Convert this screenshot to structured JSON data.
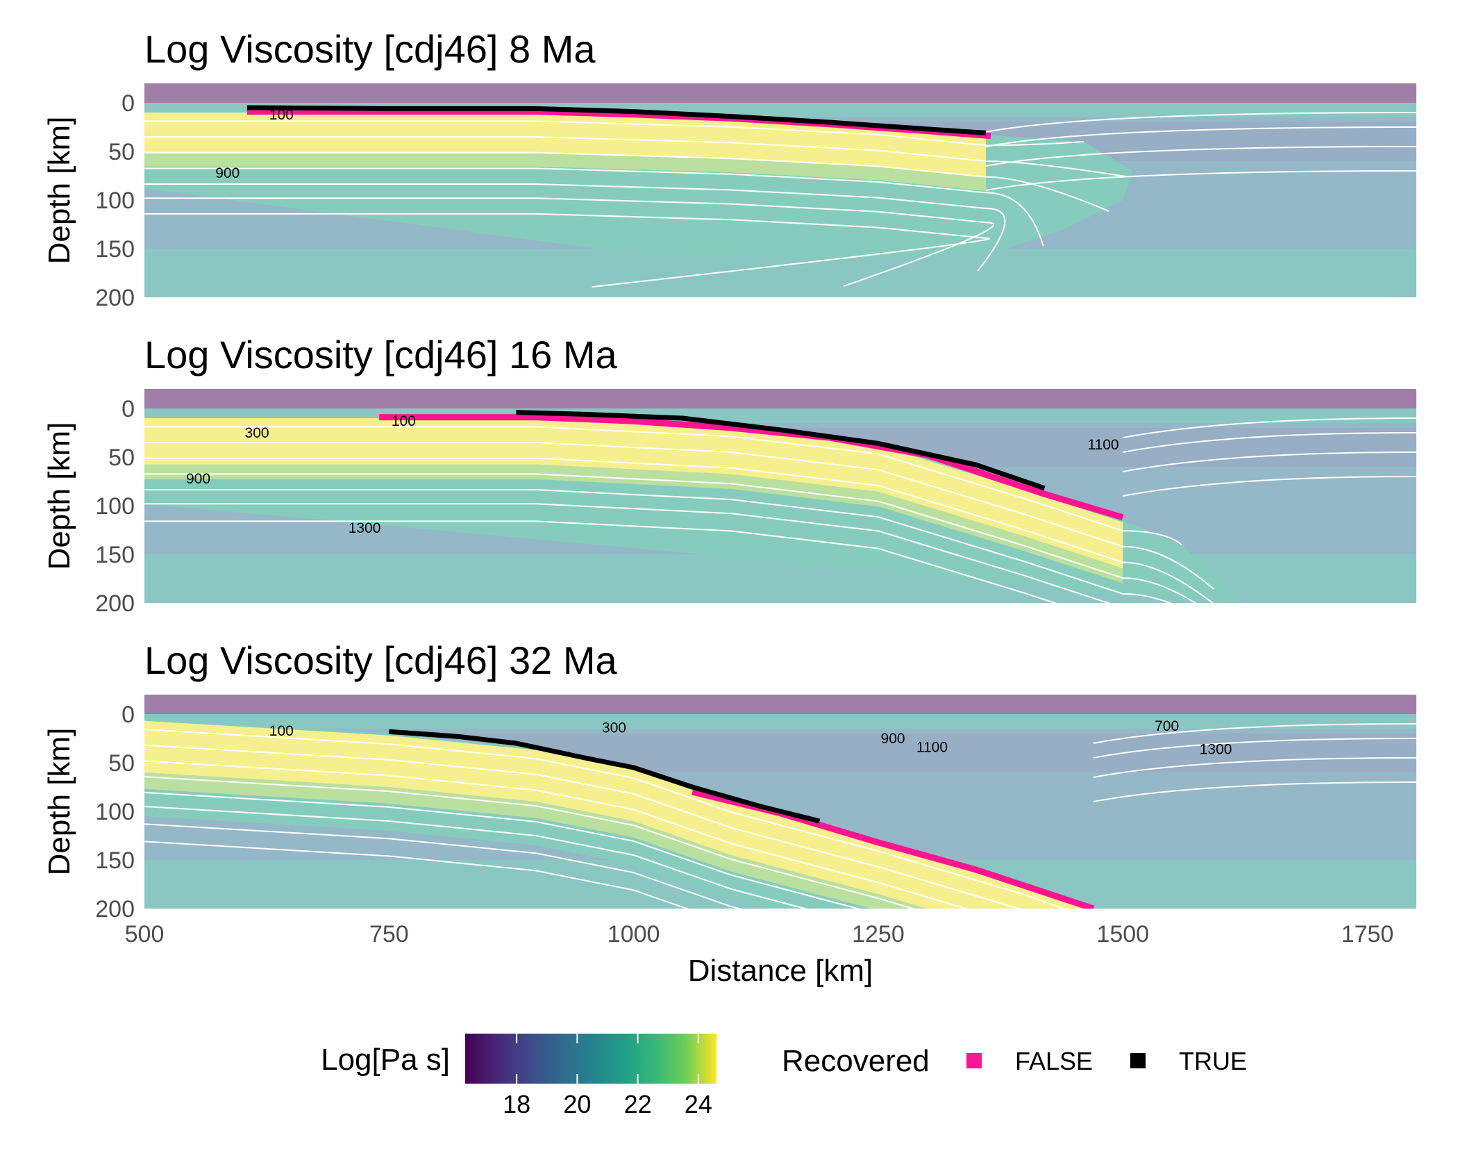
{
  "chart_data": {
    "type": "heatmap",
    "panels": [
      {
        "title": "Log Viscosity [cdj46] 8 Ma",
        "ylabel": "Depth [km]",
        "contour_labels": [
          {
            "text": "100",
            "x": 640,
            "y": 12
          },
          {
            "text": "900",
            "x": 585,
            "y": 72
          }
        ],
        "slab": {
          "surface": [
            [
              600,
              8
            ],
            [
              900,
              8
            ],
            [
              1100,
              14
            ],
            [
              1250,
              22
            ],
            [
              1360,
              33
            ]
          ],
          "thickness": 80,
          "tip": [
            [
              1460,
              40
            ],
            [
              1510,
              70
            ],
            [
              1500,
              100
            ],
            [
              1440,
              130
            ],
            [
              1380,
              150
            ],
            [
              1250,
              160
            ],
            [
              1000,
              155
            ]
          ]
        },
        "false_markers": [
          [
            605,
            9
          ],
          [
            700,
            9
          ],
          [
            800,
            9
          ],
          [
            900,
            9
          ],
          [
            1000,
            12
          ],
          [
            1100,
            16
          ],
          [
            1200,
            22
          ],
          [
            1300,
            29
          ],
          [
            1365,
            34
          ]
        ],
        "true_markers": [
          [
            605,
            5
          ],
          [
            750,
            6
          ],
          [
            900,
            6
          ],
          [
            1000,
            9
          ],
          [
            1100,
            14
          ],
          [
            1200,
            20
          ],
          [
            1300,
            27
          ],
          [
            1360,
            31
          ]
        ],
        "isotherms_depth": [
          12,
          30,
          48,
          66,
          84,
          100,
          118
        ]
      },
      {
        "title": "Log Viscosity [cdj46] 16 Ma",
        "ylabel": "Depth [km]",
        "contour_labels": [
          {
            "text": "100",
            "x": 765,
            "y": 13
          },
          {
            "text": "300",
            "x": 615,
            "y": 25
          },
          {
            "text": "900",
            "x": 555,
            "y": 72
          },
          {
            "text": "1300",
            "x": 725,
            "y": 123
          },
          {
            "text": "1100",
            "x": 1480,
            "y": 37
          }
        ],
        "slab": {
          "surface": [
            [
              740,
              8
            ],
            [
              900,
              8
            ],
            [
              1100,
              18
            ],
            [
              1250,
              36
            ],
            [
              1400,
              82
            ],
            [
              1500,
              115
            ]
          ],
          "thickness": 90,
          "tip": [
            [
              1560,
              140
            ],
            [
              1600,
              180
            ],
            [
              1620,
              200
            ]
          ]
        },
        "false_markers": [
          [
            740,
            9
          ],
          [
            800,
            9
          ],
          [
            900,
            9
          ],
          [
            1000,
            13
          ],
          [
            1100,
            20
          ],
          [
            1200,
            30
          ],
          [
            1300,
            48
          ],
          [
            1420,
            88
          ],
          [
            1500,
            112
          ]
        ],
        "true_markers": [
          [
            880,
            4
          ],
          [
            950,
            6
          ],
          [
            1050,
            10
          ],
          [
            1150,
            22
          ],
          [
            1250,
            36
          ],
          [
            1350,
            58
          ],
          [
            1420,
            82
          ]
        ],
        "isotherms_depth": [
          12,
          30,
          48,
          66,
          84,
          100,
          120
        ]
      },
      {
        "title": "Log Viscosity [cdj46] 32 Ma",
        "ylabel": "Depth [km]",
        "xlabel": "Distance [km]",
        "contour_labels": [
          {
            "text": "100",
            "x": 640,
            "y": 17
          },
          {
            "text": "300",
            "x": 980,
            "y": 14
          },
          {
            "text": "900",
            "x": 1265,
            "y": 25
          },
          {
            "text": "1100",
            "x": 1305,
            "y": 34
          },
          {
            "text": "700",
            "x": 1545,
            "y": 12
          },
          {
            "text": "1300",
            "x": 1595,
            "y": 36
          }
        ],
        "slab": {
          "surface": [
            [
              500,
              5
            ],
            [
              750,
              20
            ],
            [
              900,
              35
            ],
            [
              1000,
              55
            ],
            [
              1100,
              90
            ],
            [
              1250,
              130
            ],
            [
              1400,
              175
            ],
            [
              1470,
              200
            ]
          ],
          "thickness": 100,
          "tip": []
        },
        "false_markers": [
          [
            1060,
            80
          ],
          [
            1150,
            102
          ],
          [
            1250,
            132
          ],
          [
            1350,
            160
          ],
          [
            1470,
            200
          ]
        ],
        "true_markers": [
          [
            750,
            18
          ],
          [
            820,
            23
          ],
          [
            880,
            30
          ],
          [
            950,
            45
          ],
          [
            1000,
            55
          ],
          [
            1060,
            75
          ],
          [
            1130,
            95
          ],
          [
            1190,
            110
          ]
        ],
        "isotherms_depth": [
          12,
          30,
          48,
          66,
          84,
          100,
          120,
          140
        ]
      }
    ],
    "xlim": [
      500,
      1800
    ],
    "ylim": [
      200,
      -20
    ],
    "x_ticks": [
      500,
      750,
      1000,
      1250,
      1500,
      1750
    ],
    "y_ticks": [
      0,
      50,
      100,
      150,
      200
    ],
    "colorbar": {
      "title": "Log[Pa s]",
      "ticks": [
        18,
        20,
        22,
        24
      ],
      "range": [
        16.3,
        24.6
      ],
      "colormap": "viridis"
    },
    "legend": {
      "title": "Recovered",
      "items": [
        {
          "label": "FALSE",
          "color": "#ff1493"
        },
        {
          "label": "TRUE",
          "color": "#000000"
        }
      ]
    }
  },
  "colors": {
    "air": "#a07ea8",
    "lithosphere": "#f6ef8e",
    "upper_band": "#b9e09e",
    "mid_band": "#86ccbd",
    "mantle": "#94b8c8",
    "deep": "#8ac6c2",
    "wedge": "#9aa6c2",
    "isotherm": "#ffffff"
  }
}
